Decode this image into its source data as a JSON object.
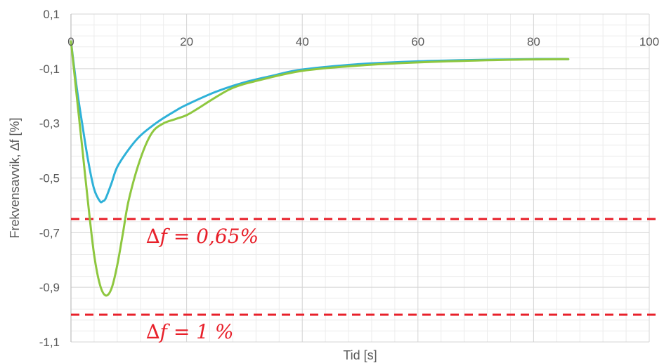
{
  "chart_data": {
    "type": "line",
    "xlabel": "Tid [s]",
    "ylabel": "Frekvensavvik, ∆f [%]",
    "xlim": [
      0,
      100
    ],
    "ylim": [
      -1.1,
      0.1
    ],
    "x_ticks": [
      0,
      20,
      40,
      60,
      80,
      100
    ],
    "x_tick_labels": [
      "0",
      "20",
      "40",
      "60",
      "80",
      "100"
    ],
    "y_ticks": [
      0.1,
      -0.1,
      -0.3,
      -0.5,
      -0.7,
      -0.9,
      -1.1
    ],
    "y_tick_labels": [
      "0,1",
      "-0,1",
      "-0,3",
      "-0,5",
      "-0,7",
      "-0,9",
      "-1,1"
    ],
    "grid": true,
    "series": [
      {
        "color": "#2eb1d8",
        "points": [
          [
            0,
            0.0
          ],
          [
            1,
            -0.17
          ],
          [
            2,
            -0.31
          ],
          [
            3,
            -0.44
          ],
          [
            4,
            -0.54
          ],
          [
            5,
            -0.585
          ],
          [
            5.5,
            -0.585
          ],
          [
            6,
            -0.575
          ],
          [
            7,
            -0.52
          ],
          [
            8,
            -0.46
          ],
          [
            10,
            -0.395
          ],
          [
            12,
            -0.345
          ],
          [
            15,
            -0.295
          ],
          [
            18,
            -0.255
          ],
          [
            20,
            -0.232
          ],
          [
            25,
            -0.185
          ],
          [
            30,
            -0.15
          ],
          [
            35,
            -0.125
          ],
          [
            40,
            -0.103
          ],
          [
            50,
            -0.083
          ],
          [
            60,
            -0.073
          ],
          [
            70,
            -0.068
          ],
          [
            80,
            -0.065
          ],
          [
            86,
            -0.065
          ]
        ]
      },
      {
        "color": "#8ec73f",
        "points": [
          [
            0,
            0.0
          ],
          [
            1,
            -0.2
          ],
          [
            2,
            -0.4
          ],
          [
            3,
            -0.6
          ],
          [
            4,
            -0.78
          ],
          [
            5,
            -0.89
          ],
          [
            6,
            -0.93
          ],
          [
            7,
            -0.905
          ],
          [
            8,
            -0.82
          ],
          [
            9,
            -0.7
          ],
          [
            10,
            -0.58
          ],
          [
            12,
            -0.43
          ],
          [
            14,
            -0.335
          ],
          [
            16,
            -0.3
          ],
          [
            18,
            -0.285
          ],
          [
            20,
            -0.27
          ],
          [
            22,
            -0.245
          ],
          [
            25,
            -0.205
          ],
          [
            28,
            -0.17
          ],
          [
            32,
            -0.145
          ],
          [
            40,
            -0.108
          ],
          [
            50,
            -0.088
          ],
          [
            60,
            -0.077
          ],
          [
            70,
            -0.07
          ],
          [
            80,
            -0.066
          ],
          [
            86,
            -0.065
          ]
        ]
      }
    ],
    "reference_lines": [
      {
        "y": -0.65,
        "color": "#e8202a",
        "label": "∆𝑓 = 0,65%"
      },
      {
        "y": -1.0,
        "color": "#e8202a",
        "label": "∆𝑓 = 1 %"
      }
    ]
  }
}
